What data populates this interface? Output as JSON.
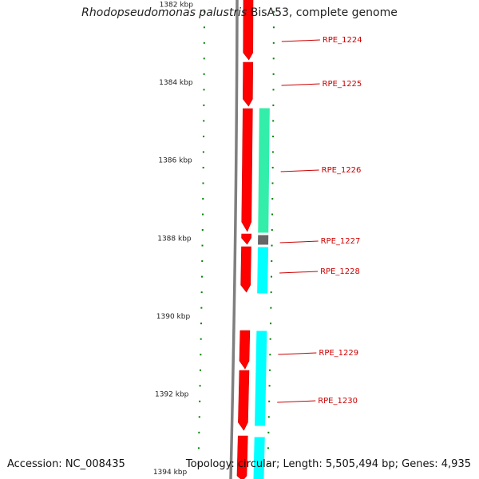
{
  "header": {
    "organism": "Rhodopseudomonas palustris",
    "strain_suffix": " BisA53, complete genome"
  },
  "footer": {
    "accession": "Accession: NC_008435",
    "topology": "Topology: circular; Length: 5,505,494 bp; Genes: 4,935"
  },
  "colors": {
    "backbone": "#7f7f7f",
    "tick": "#008000",
    "cds": "#ff0000",
    "strand_green": "#33eeaa",
    "strand_cyan": "#00ffff",
    "strand_gray": "#666666",
    "label": "#cc0000"
  },
  "scale": {
    "labels": [
      {
        "kbp": 1382,
        "text": "1382 kbp"
      },
      {
        "kbp": 1384,
        "text": "1384 kbp"
      },
      {
        "kbp": 1386,
        "text": "1386 kbp"
      },
      {
        "kbp": 1388,
        "text": "1388 kbp"
      },
      {
        "kbp": 1390,
        "text": "1390 kbp"
      },
      {
        "kbp": 1392,
        "text": "1392 kbp"
      },
      {
        "kbp": 1394,
        "text": "1394 kbp"
      }
    ]
  },
  "features": [
    {
      "name": "RPE_1224"
    },
    {
      "name": "RPE_1225"
    },
    {
      "name": "RPE_1226"
    },
    {
      "name": "RPE_1227"
    },
    {
      "name": "RPE_1228"
    },
    {
      "name": "RPE_1229"
    },
    {
      "name": "RPE_1230"
    }
  ]
}
